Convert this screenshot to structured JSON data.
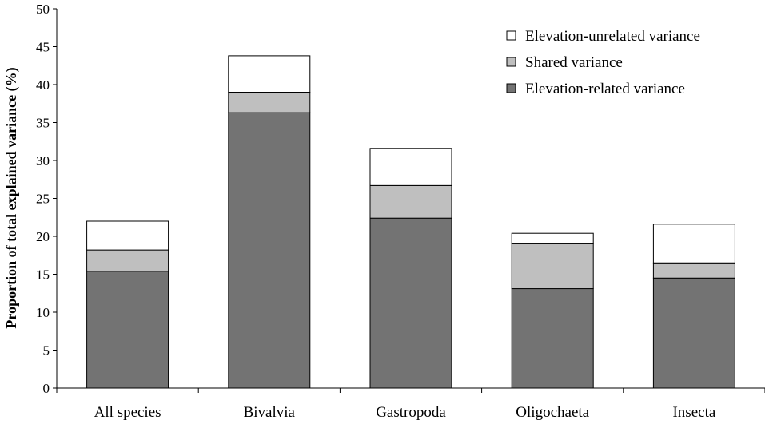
{
  "chart_data": {
    "type": "bar",
    "stacked": true,
    "title": "",
    "xlabel": "",
    "ylabel": "Proportion of  total explained variance (%)",
    "ylim": [
      0,
      50
    ],
    "yticks": [
      0,
      5,
      10,
      15,
      20,
      25,
      30,
      35,
      40,
      45,
      50
    ],
    "categories": [
      "All species",
      "Bivalvia",
      "Gastropoda",
      "Oligochaeta",
      "Insecta"
    ],
    "series": [
      {
        "name": "Elevation-related variance",
        "color": "#737373",
        "values": [
          15.4,
          36.3,
          22.4,
          13.1,
          14.5
        ]
      },
      {
        "name": "Shared variance",
        "color": "#bfbfbf",
        "values": [
          2.8,
          2.7,
          4.3,
          6.0,
          2.0
        ]
      },
      {
        "name": "Elevation-unrelated variance",
        "color": "#ffffff",
        "values": [
          3.8,
          4.8,
          4.9,
          1.3,
          5.1
        ]
      }
    ],
    "legend": {
      "position": "top-right",
      "order": [
        "Elevation-unrelated variance",
        "Shared variance",
        "Elevation-related variance"
      ]
    },
    "grid": false
  }
}
